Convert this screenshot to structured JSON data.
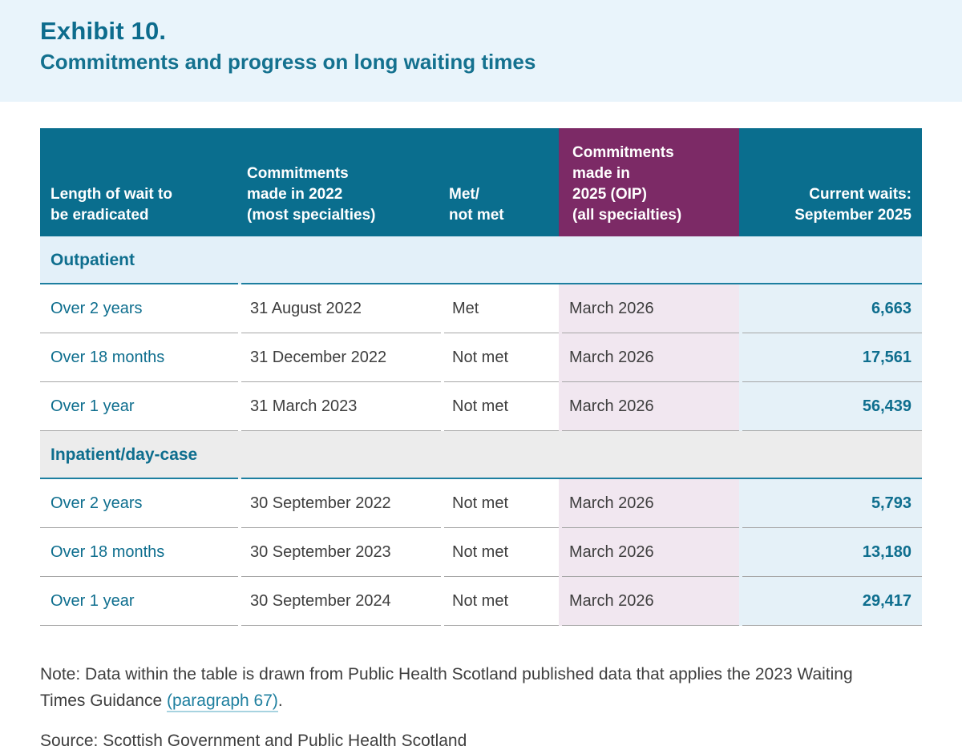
{
  "exhibit": {
    "label": "Exhibit 10.",
    "title": "Commitments and progress on long waiting times"
  },
  "table": {
    "headers": [
      "Length of wait to\nbe eradicated",
      "Commitments\nmade in 2022\n(most specialties)",
      "Met/\nnot met",
      "Commitments\nmade in\n2025 (OIP)\n(all specialties)",
      "Current waits:\nSeptember 2025"
    ],
    "sections": [
      {
        "label": "Outpatient",
        "rows": [
          {
            "wait": "Over 2 years",
            "commitment_2022": "31 August 2022",
            "met": "Met",
            "commitment_2025": "March 2026",
            "current_waits": "6,663"
          },
          {
            "wait": "Over 18 months",
            "commitment_2022": "31 December 2022",
            "met": "Not met",
            "commitment_2025": "March 2026",
            "current_waits": "17,561"
          },
          {
            "wait": "Over 1 year",
            "commitment_2022": "31 March 2023",
            "met": "Not met",
            "commitment_2025": "March 2026",
            "current_waits": "56,439"
          }
        ]
      },
      {
        "label": "Inpatient/day-case",
        "rows": [
          {
            "wait": "Over 2 years",
            "commitment_2022": "30 September 2022",
            "met": "Not met",
            "commitment_2025": "March 2026",
            "current_waits": "5,793"
          },
          {
            "wait": "Over 18 months",
            "commitment_2022": "30 September 2023",
            "met": "Not met",
            "commitment_2025": "March 2026",
            "current_waits": "13,180"
          },
          {
            "wait": "Over 1 year",
            "commitment_2022": "30 September 2024",
            "met": "Not met",
            "commitment_2025": "March 2026",
            "current_waits": "29,417"
          }
        ]
      }
    ]
  },
  "note": {
    "prefix": "Note: Data within the table is drawn from Public Health Scotland published data that applies the 2023 Waiting Times Guidance ",
    "link": "(paragraph 67)",
    "suffix": "."
  },
  "source": "Source: Scottish Government and Public Health Scotland",
  "colors": {
    "banner": "#e9f4fb",
    "titleTeal": "#0d6c8d",
    "subtitleTeal": "#14718f",
    "tealHeader": "#0a6e8e",
    "purple": "#7c2a66",
    "sectionBlue": "#e3f0f9",
    "sectionGray": "#ececec",
    "pink": "#f1e7f0",
    "lightBlue": "#e5f1f8",
    "tealText": "#0e6e8e",
    "darkText": "#3e3e3e",
    "separator": "#a6a6a6",
    "tealBorder": "#1d7fa0",
    "link": "#1e7f9f",
    "linkUnderline": "#a7d3e0"
  }
}
